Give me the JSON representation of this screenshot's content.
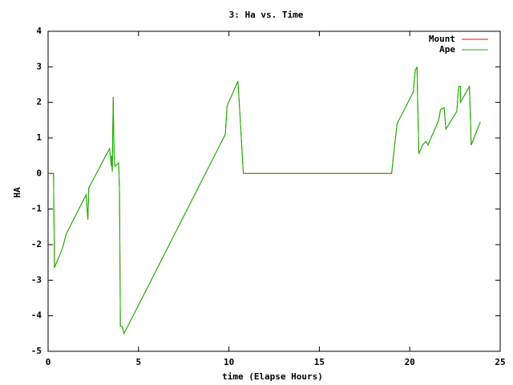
{
  "chart_data": {
    "type": "line",
    "title": "3: Ha vs. Time",
    "x_label": "time (Elapse Hours)",
    "y_label": "HA",
    "x": [
      0,
      0.3,
      0.35,
      0.8,
      1.0,
      2.1,
      2.2,
      2.25,
      3.4,
      3.5,
      3.5,
      3.55,
      3.6,
      3.65,
      3.7,
      3.9,
      3.95,
      4.0,
      4.1,
      4.2,
      9.6,
      9.8,
      9.9,
      10.5,
      10.8,
      19.0,
      19.1,
      19.3,
      20.2,
      20.3,
      20.4,
      20.5,
      20.7,
      20.9,
      21.0,
      21.6,
      21.7,
      21.9,
      22.0,
      22.6,
      22.7,
      22.8,
      22.8,
      23.3,
      23.4,
      23.9
    ],
    "series": [
      {
        "name": "Mount",
        "color": "#ff0000",
        "values": [
          0,
          0,
          -2.65,
          -2.1,
          -1.7,
          -0.6,
          -1.3,
          -0.4,
          0.7,
          0.2,
          0.5,
          0.05,
          2.15,
          0.6,
          0.2,
          0.3,
          -0.5,
          -4.3,
          -4.3,
          -4.5,
          0.9,
          1.1,
          1.9,
          2.6,
          0,
          0,
          0.5,
          1.4,
          2.3,
          2.9,
          3.0,
          0.55,
          0.8,
          0.9,
          0.8,
          1.5,
          1.8,
          1.85,
          1.25,
          1.75,
          2.45,
          2.45,
          2.0,
          2.45,
          0.8,
          1.45
        ]
      },
      {
        "name": "Ape",
        "color": "#00c000",
        "values": [
          0,
          0,
          -2.65,
          -2.1,
          -1.7,
          -0.6,
          -1.3,
          -0.4,
          0.7,
          0.2,
          0.5,
          0.05,
          2.1,
          0.6,
          0.2,
          0.3,
          -0.5,
          -4.3,
          -4.3,
          -4.5,
          0.9,
          1.1,
          1.9,
          2.6,
          0,
          0,
          0.5,
          1.4,
          2.3,
          2.9,
          3.0,
          0.55,
          0.8,
          0.9,
          0.8,
          1.5,
          1.8,
          1.85,
          1.25,
          1.75,
          2.45,
          2.45,
          2.0,
          2.45,
          0.8,
          1.45
        ]
      }
    ],
    "xlim": [
      0,
      25
    ],
    "xticks": [
      0,
      5,
      10,
      15,
      20,
      25
    ],
    "ylim": [
      -5,
      4
    ],
    "yticks": [
      -5,
      -4,
      -3,
      -2,
      -1,
      0,
      1,
      2,
      3,
      4
    ],
    "legend": "top-right"
  }
}
